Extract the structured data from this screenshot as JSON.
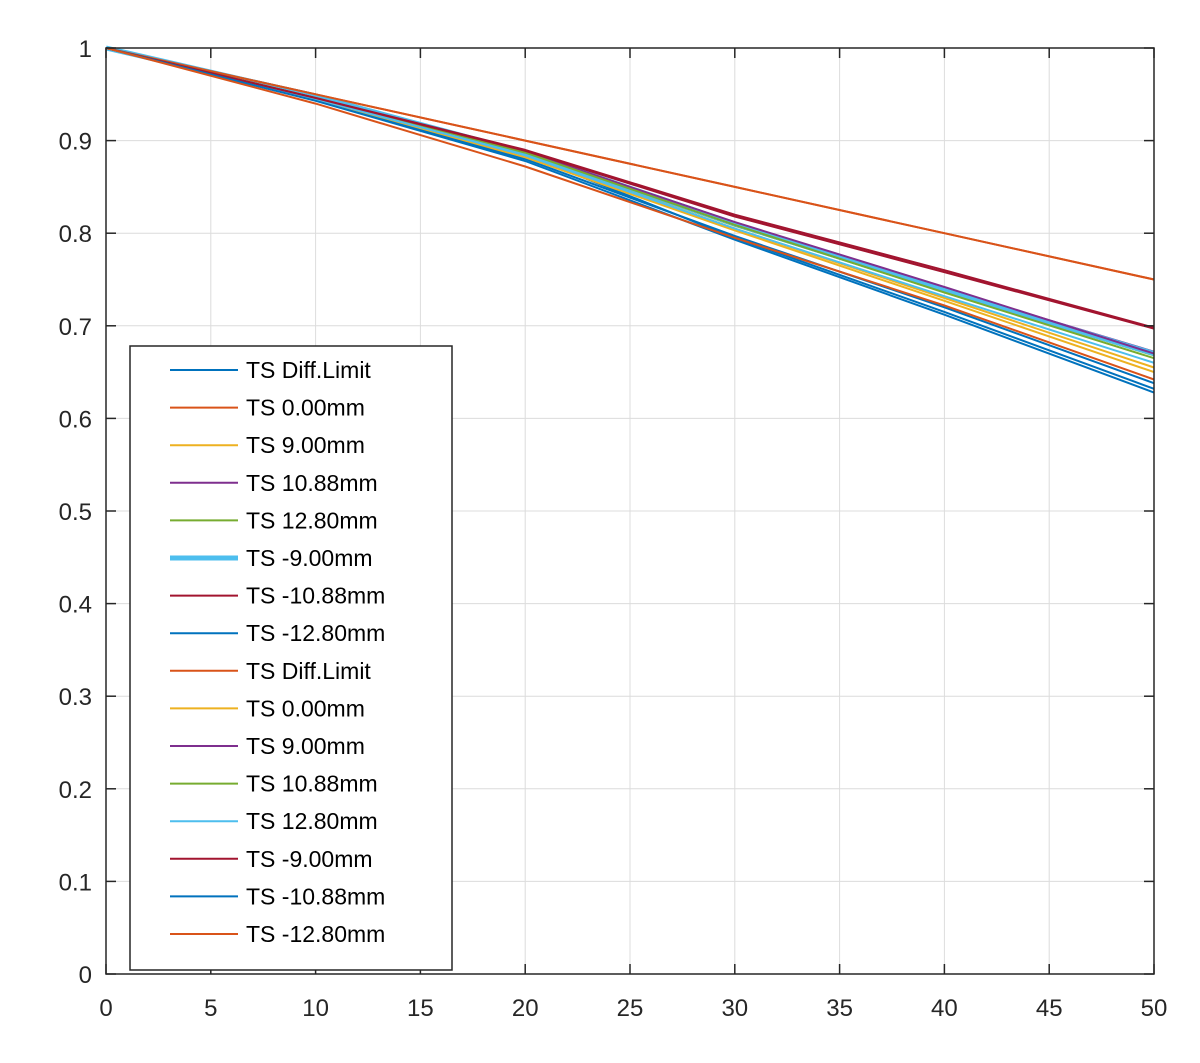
{
  "chart_data": {
    "type": "line",
    "title": "",
    "xlabel": "",
    "ylabel": "",
    "xlim": [
      0,
      50
    ],
    "ylim": [
      0,
      1
    ],
    "xticks": [
      0,
      5,
      10,
      15,
      20,
      25,
      30,
      35,
      40,
      45,
      50
    ],
    "yticks": [
      0,
      0.1,
      0.2,
      0.3,
      0.4,
      0.5,
      0.6,
      0.7,
      0.8,
      0.9,
      1
    ],
    "xtick_labels": [
      "0",
      "5",
      "10",
      "15",
      "20",
      "25",
      "30",
      "35",
      "40",
      "45",
      "50"
    ],
    "ytick_labels": [
      "0",
      "0.1",
      "0.2",
      "0.3",
      "0.4",
      "0.5",
      "0.6",
      "0.7",
      "0.8",
      "0.9",
      "1"
    ],
    "grid": true,
    "legend_position": "lower-left",
    "series": [
      {
        "name": "TS Diff.Limit",
        "color": "#0072BD",
        "width": 2,
        "x": [
          0,
          10,
          20,
          30,
          40,
          50
        ],
        "y": [
          1,
          0.95,
          0.885,
          0.795,
          0.715,
          0.632
        ]
      },
      {
        "name": "TS 0.00mm",
        "color": "#D95319",
        "width": 2,
        "x": [
          0,
          10,
          20,
          30,
          40,
          50
        ],
        "y": [
          1,
          0.95,
          0.9,
          0.85,
          0.8,
          0.75
        ]
      },
      {
        "name": "TS 9.00mm",
        "color": "#EDB120",
        "width": 2,
        "x": [
          0,
          10,
          20,
          30,
          40,
          50
        ],
        "y": [
          1,
          0.947,
          0.885,
          0.805,
          0.73,
          0.655
        ]
      },
      {
        "name": "TS 10.88mm",
        "color": "#7E2F8E",
        "width": 2,
        "x": [
          0,
          10,
          20,
          30,
          40,
          50
        ],
        "y": [
          1,
          0.947,
          0.888,
          0.81,
          0.74,
          0.672
        ]
      },
      {
        "name": "TS 12.80mm",
        "color": "#77AC30",
        "width": 2,
        "x": [
          0,
          10,
          20,
          30,
          40,
          50
        ],
        "y": [
          1,
          0.947,
          0.886,
          0.808,
          0.737,
          0.668
        ]
      },
      {
        "name": "TS -9.00mm",
        "color": "#4DBEEE",
        "width": 5,
        "x": [
          0,
          10,
          20,
          30,
          40,
          50
        ],
        "y": [
          1,
          0.948,
          0.887,
          0.81,
          0.738,
          0.67
        ]
      },
      {
        "name": "TS -10.88mm",
        "color": "#A2142F",
        "width": 2,
        "x": [
          0,
          10,
          20,
          30,
          40,
          50
        ],
        "y": [
          1,
          0.946,
          0.89,
          0.82,
          0.76,
          0.698
        ]
      },
      {
        "name": "TS -12.80mm",
        "color": "#0072BD",
        "width": 2,
        "x": [
          0,
          10,
          20,
          30,
          40,
          50
        ],
        "y": [
          1,
          0.944,
          0.88,
          0.797,
          0.72,
          0.638
        ]
      },
      {
        "name": "TS Diff.Limit",
        "color": "#D95319",
        "width": 2,
        "x": [
          0,
          10,
          20,
          30,
          40,
          50
        ],
        "y": [
          1,
          0.95,
          0.9,
          0.85,
          0.8,
          0.75
        ]
      },
      {
        "name": "TS 0.00mm",
        "color": "#EDB120",
        "width": 2,
        "x": [
          0,
          10,
          20,
          30,
          40,
          50
        ],
        "y": [
          1,
          0.945,
          0.882,
          0.803,
          0.727,
          0.65
        ]
      },
      {
        "name": "TS 9.00mm",
        "color": "#7E2F8E",
        "width": 2,
        "x": [
          0,
          10,
          20,
          30,
          40,
          50
        ],
        "y": [
          1,
          0.946,
          0.888,
          0.812,
          0.742,
          0.67
        ]
      },
      {
        "name": "TS 10.88mm",
        "color": "#77AC30",
        "width": 2,
        "x": [
          0,
          10,
          20,
          30,
          40,
          50
        ],
        "y": [
          1,
          0.946,
          0.887,
          0.809,
          0.736,
          0.665
        ]
      },
      {
        "name": "TS 12.80mm",
        "color": "#4DBEEE",
        "width": 2,
        "x": [
          0,
          10,
          20,
          30,
          40,
          50
        ],
        "y": [
          1,
          0.945,
          0.884,
          0.805,
          0.732,
          0.66
        ]
      },
      {
        "name": "TS -9.00mm",
        "color": "#A2142F",
        "width": 2,
        "x": [
          0,
          10,
          20,
          30,
          40,
          50
        ],
        "y": [
          1,
          0.946,
          0.889,
          0.818,
          0.758,
          0.697
        ]
      },
      {
        "name": "TS -10.88mm",
        "color": "#0072BD",
        "width": 2,
        "x": [
          0,
          10,
          20,
          30,
          40,
          50
        ],
        "y": [
          1,
          0.943,
          0.878,
          0.793,
          0.712,
          0.628
        ]
      },
      {
        "name": "TS -12.80mm",
        "color": "#D95319",
        "width": 2,
        "x": [
          0,
          10,
          20,
          30,
          40,
          50
        ],
        "y": [
          1,
          0.94,
          0.872,
          0.795,
          0.722,
          0.642
        ]
      }
    ]
  }
}
